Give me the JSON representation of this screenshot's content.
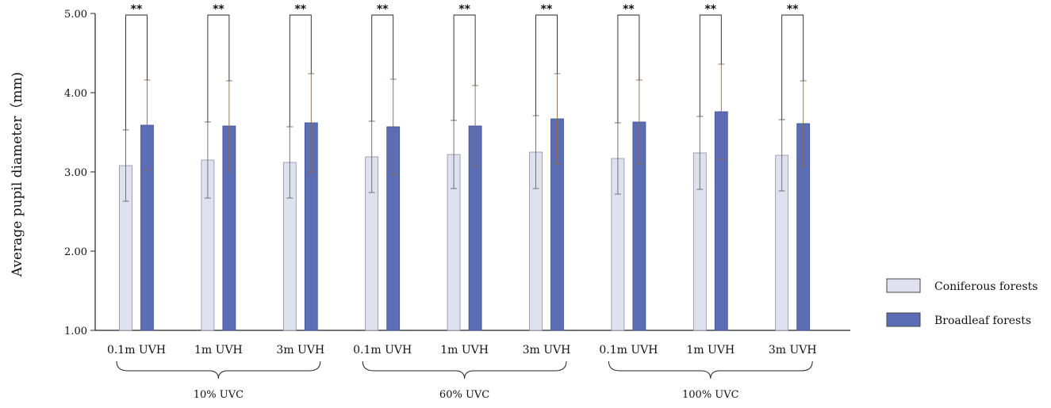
{
  "chart_data": {
    "type": "bar",
    "title": "",
    "ylabel": "Average pupil diameter（mm)",
    "xlabel": "",
    "ylim": [
      1.0,
      5.0
    ],
    "yticks": [
      1.0,
      2.0,
      3.0,
      4.0,
      5.0
    ],
    "ytick_labels": [
      "1.00",
      "2.00",
      "3.00",
      "4.00",
      "5.00"
    ],
    "categories": [
      "0.1m UVH",
      "1m UVH",
      "3m UVH",
      "0.1m UVH",
      "1m UVH",
      "3m UVH",
      "0.1m UVH",
      "1m UVH",
      "3m UVH"
    ],
    "groups": [
      {
        "label": "10% UVC",
        "categories": [
          0,
          1,
          2
        ]
      },
      {
        "label": "60% UVC",
        "categories": [
          3,
          4,
          5
        ]
      },
      {
        "label": "100% UVC",
        "categories": [
          6,
          7,
          8
        ]
      }
    ],
    "series": [
      {
        "name": "Coniferous forests",
        "color": "#dfe1ef",
        "values": [
          3.08,
          3.15,
          3.12,
          3.19,
          3.22,
          3.25,
          3.17,
          3.24,
          3.21
        ],
        "error": [
          0.45,
          0.48,
          0.45,
          0.45,
          0.43,
          0.46,
          0.45,
          0.46,
          0.45
        ]
      },
      {
        "name": "Broadleaf forests",
        "color": "#5b6db4",
        "values": [
          3.59,
          3.58,
          3.62,
          3.57,
          3.58,
          3.67,
          3.63,
          3.76,
          3.61
        ],
        "error": [
          0.57,
          0.57,
          0.62,
          0.6,
          0.51,
          0.57,
          0.53,
          0.6,
          0.54
        ]
      }
    ],
    "significance": [
      "**",
      "**",
      "**",
      "**",
      "**",
      "**",
      "**",
      "**",
      "**"
    ],
    "legend_position": "right"
  }
}
